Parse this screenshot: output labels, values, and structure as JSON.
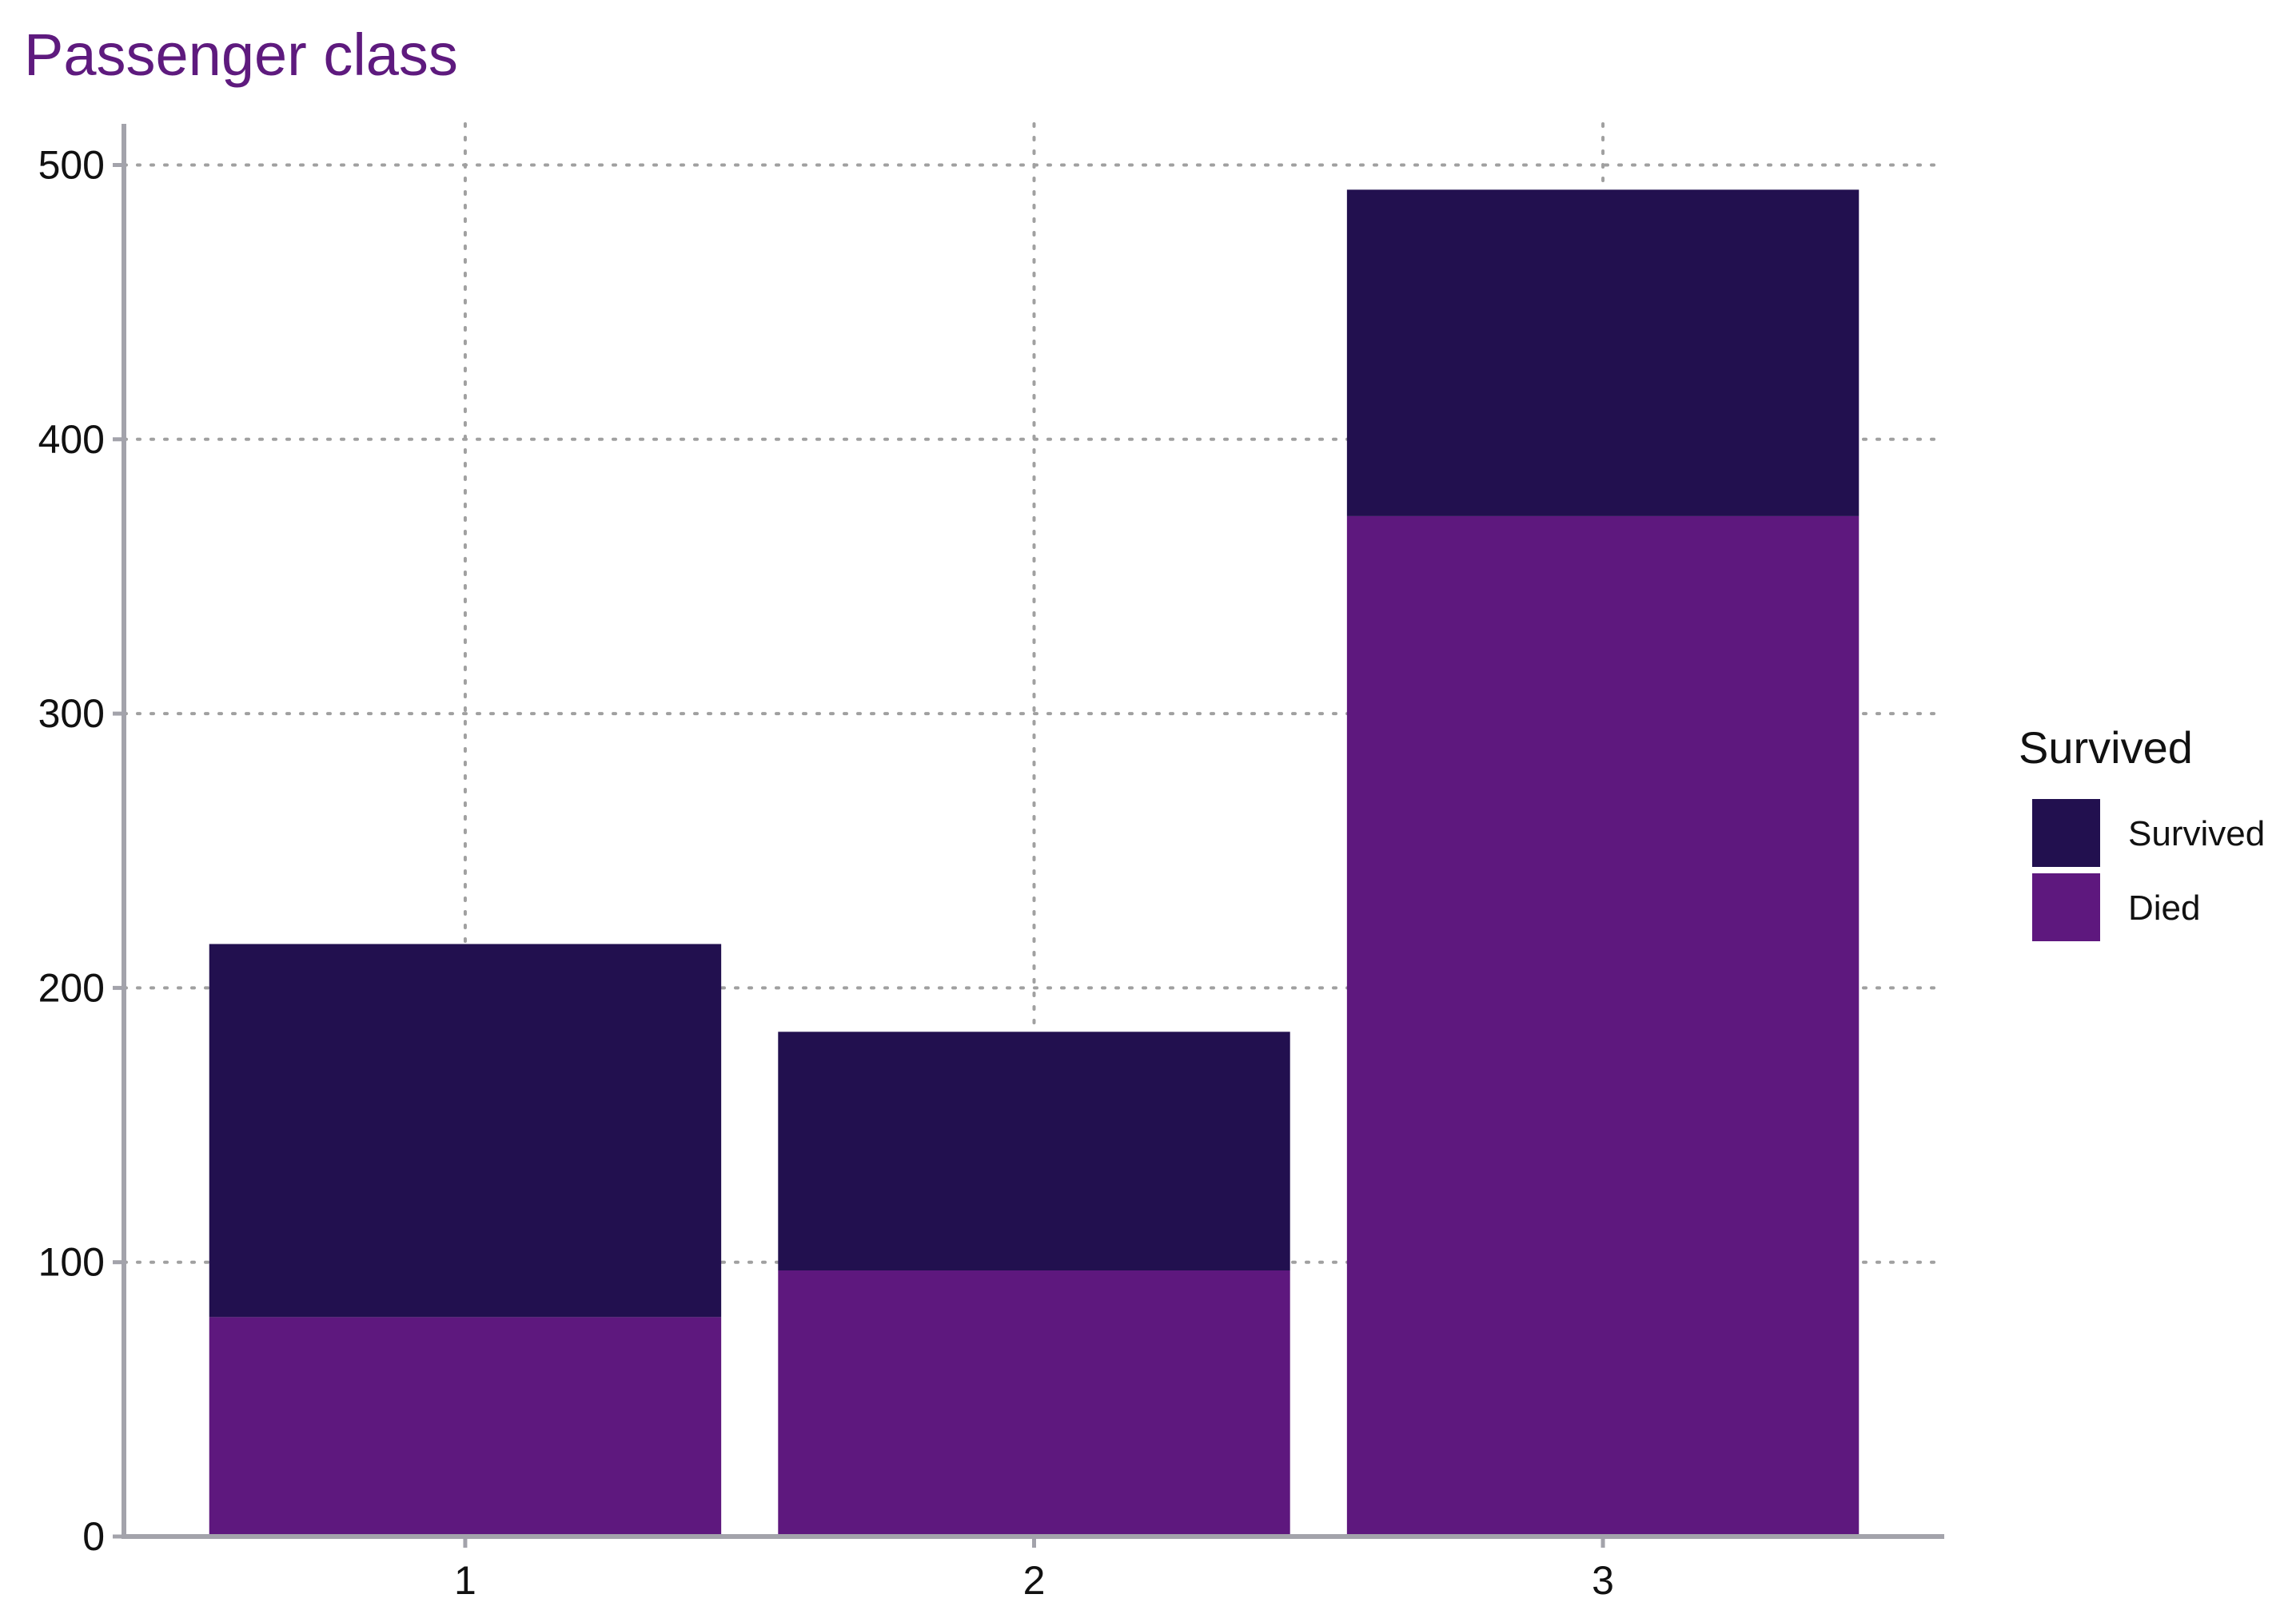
{
  "chart_data": {
    "type": "bar",
    "stacked": true,
    "title": "Passenger class",
    "xlabel": "",
    "ylabel": "",
    "categories": [
      "1",
      "2",
      "3"
    ],
    "series": [
      {
        "name": "Died",
        "values": [
          80,
          97,
          372
        ]
      },
      {
        "name": "Survived",
        "values": [
          136,
          87,
          119
        ]
      }
    ],
    "ylim": [
      0,
      515
    ],
    "yticks": [
      0,
      100,
      200,
      300,
      400,
      500
    ],
    "grid": true,
    "legend": {
      "title": "Survived",
      "entries": [
        "Survived",
        "Died"
      ],
      "position": "right"
    }
  },
  "colors": {
    "Died": "#5e187e",
    "Survived": "#22104f",
    "title": "#5e1a7e",
    "axis": "#a3a3ab",
    "grid": "#a0a0a0"
  }
}
